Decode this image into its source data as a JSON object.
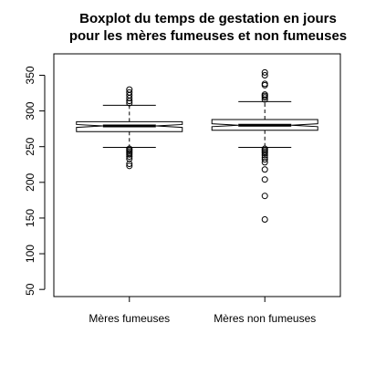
{
  "chart_data": {
    "type": "boxplot",
    "title_lines": [
      "Boxplot du temps de gestation en jours",
      "pour les mères fumeuses et non fumeuses"
    ],
    "xlabel": "",
    "ylabel": "",
    "ylim": [
      40,
      380
    ],
    "y_ticks": [
      50,
      100,
      150,
      200,
      250,
      300,
      350
    ],
    "notched": true,
    "grid": false,
    "categories": [
      "Mères fumeuses",
      "Mères non fumeuses"
    ],
    "boxes": [
      {
        "category": "Mères fumeuses",
        "q1": 271,
        "median": 279,
        "q3": 285,
        "notch_low": 277,
        "notch_high": 281,
        "whisker_low": 249,
        "whisker_high": 308,
        "outliers": [
          223,
          226,
          233,
          236,
          239,
          241,
          243,
          245,
          247,
          311,
          314,
          318,
          322,
          326,
          330
        ]
      },
      {
        "category": "Mères non fumeuses",
        "q1": 273,
        "median": 280,
        "q3": 288,
        "notch_low": 278,
        "notch_high": 282,
        "whisker_low": 249,
        "whisker_high": 313,
        "outliers": [
          148,
          181,
          204,
          218,
          228,
          232,
          235,
          238,
          241,
          243,
          245,
          247,
          316,
          319,
          321,
          323,
          336,
          338,
          350,
          354
        ]
      }
    ]
  }
}
